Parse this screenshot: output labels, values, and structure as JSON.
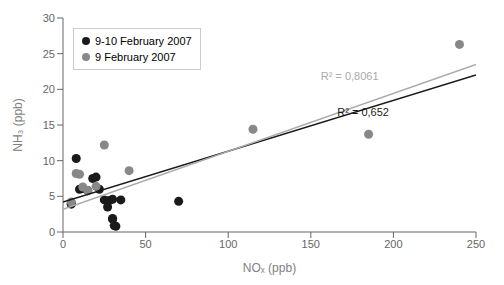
{
  "chart_data": {
    "type": "scatter",
    "xlabel": "NOₓ (ppb)",
    "ylabel": "NH₃ (ppb)",
    "xlim": [
      0,
      250
    ],
    "ylim": [
      0,
      30
    ],
    "xticks": [
      0,
      50,
      100,
      150,
      200,
      250
    ],
    "yticks": [
      0,
      5,
      10,
      15,
      20,
      25,
      30
    ],
    "grid": false,
    "legend": "upper left",
    "series": [
      {
        "name": "9-10 February 2007",
        "type": "scatter",
        "marker": "circle",
        "color": "#1a1a1a",
        "x": [
          5,
          5,
          8,
          10,
          12,
          15,
          18,
          20,
          22,
          25,
          27,
          28,
          30,
          30,
          30,
          31,
          32,
          35,
          70
        ],
        "values": [
          4.0,
          3.9,
          10.3,
          6.0,
          6.1,
          5.8,
          7.5,
          7.7,
          6.0,
          4.5,
          3.5,
          4.4,
          4.6,
          1.9,
          1.8,
          0.9,
          0.8,
          4.5,
          4.3
        ]
      },
      {
        "name": "9 February 2007",
        "type": "scatter",
        "marker": "circle",
        "color": "#888888",
        "x": [
          5,
          8,
          10,
          12,
          15,
          20,
          25,
          40,
          115,
          185,
          240
        ],
        "values": [
          4.2,
          8.2,
          8.1,
          6.3,
          5.8,
          6.4,
          12.2,
          8.6,
          14.4,
          13.7,
          26.3
        ]
      },
      {
        "type": "line",
        "line_style": "solid",
        "color": "#1a1a1a",
        "x": [
          0,
          250
        ],
        "values": [
          4.2,
          22.0
        ]
      },
      {
        "type": "line",
        "line_style": "solid",
        "color": "#aaaaaa",
        "x": [
          0,
          250
        ],
        "values": [
          3.2,
          23.5
        ]
      }
    ],
    "annotations": [
      {
        "text": "R² = 0,652",
        "x": 163,
        "y": 16.8,
        "color": "#1a1a1a"
      },
      {
        "text": "R² = 0,8061",
        "x": 153,
        "y": 21.8,
        "color": "#aaaaaa"
      }
    ]
  }
}
